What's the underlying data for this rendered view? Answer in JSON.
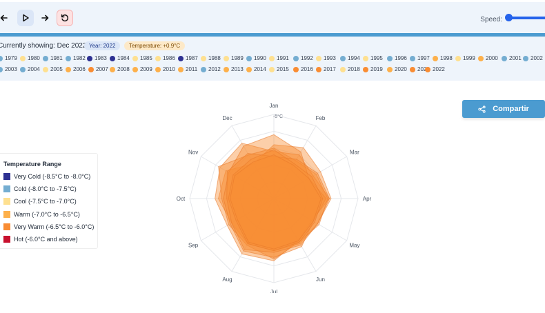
{
  "controls": {
    "prev_icon": "arrow-left-icon",
    "play_icon": "play-icon",
    "next_icon": "arrow-right-icon",
    "reset_icon": "rotate-ccw-icon",
    "speed_label": "Speed:"
  },
  "status": {
    "showing": "Currently showing: Dec 2022",
    "year_badge": "Year: 2022",
    "temp_badge": "Temperature: +0.9°C"
  },
  "share": {
    "label": "Compartir",
    "icon": "share-icon"
  },
  "legend": {
    "title": "Temperature Range",
    "items": [
      {
        "label": "Very Cold (-8.5°C to -8.0°C)",
        "color": "#2e3192"
      },
      {
        "label": "Cold (-8.0°C to -7.5°C)",
        "color": "#74add1"
      },
      {
        "label": "Cool (-7.5°C to -7.0°C)",
        "color": "#fee090"
      },
      {
        "label": "Warm (-7.0°C to -6.5°C)",
        "color": "#fdb04b"
      },
      {
        "label": "Very Warm (-6.5°C to -6.0°C)",
        "color": "#f98c33"
      },
      {
        "label": "Hot (-6.0°C and above)",
        "color": "#c8102e"
      }
    ]
  },
  "years": [
    {
      "year": "1979",
      "color": "#74add1"
    },
    {
      "year": "1980",
      "color": "#fee090"
    },
    {
      "year": "1981",
      "color": "#74add1"
    },
    {
      "year": "1982",
      "color": "#74add1"
    },
    {
      "year": "1983",
      "color": "#2e3192"
    },
    {
      "year": "1984",
      "color": "#2e3192"
    },
    {
      "year": "1985",
      "color": "#fee090"
    },
    {
      "year": "1986",
      "color": "#fee090"
    },
    {
      "year": "1987",
      "color": "#2e3192"
    },
    {
      "year": "1988",
      "color": "#fee090"
    },
    {
      "year": "1989",
      "color": "#fee090"
    },
    {
      "year": "1990",
      "color": "#74add1"
    },
    {
      "year": "1991",
      "color": "#fee090"
    },
    {
      "year": "1992",
      "color": "#74add1"
    },
    {
      "year": "1993",
      "color": "#fee090"
    },
    {
      "year": "1994",
      "color": "#74add1"
    },
    {
      "year": "1995",
      "color": "#fee090"
    },
    {
      "year": "1996",
      "color": "#74add1"
    },
    {
      "year": "1997",
      "color": "#74add1"
    },
    {
      "year": "1998",
      "color": "#fdb04b"
    },
    {
      "year": "1999",
      "color": "#fee090"
    },
    {
      "year": "2000",
      "color": "#fdb04b"
    },
    {
      "year": "2001",
      "color": "#74add1"
    },
    {
      "year": "2002",
      "color": "#74add1"
    },
    {
      "year": "2003",
      "color": "#74add1"
    },
    {
      "year": "2004",
      "color": "#74add1"
    },
    {
      "year": "2005",
      "color": "#fee090"
    },
    {
      "year": "2006",
      "color": "#fdb04b"
    },
    {
      "year": "2007",
      "color": "#f98c33"
    },
    {
      "year": "2008",
      "color": "#fdb04b"
    },
    {
      "year": "2009",
      "color": "#fdb04b"
    },
    {
      "year": "2010",
      "color": "#fdb04b"
    },
    {
      "year": "2011",
      "color": "#fdb04b"
    },
    {
      "year": "2012",
      "color": "#74add1"
    },
    {
      "year": "2013",
      "color": "#fdb04b"
    },
    {
      "year": "2014",
      "color": "#fdb04b"
    },
    {
      "year": "2015",
      "color": "#fee090"
    },
    {
      "year": "2016",
      "color": "#f98c33"
    },
    {
      "year": "2017",
      "color": "#f98c33"
    },
    {
      "year": "2018",
      "color": "#fee090"
    },
    {
      "year": "2019",
      "color": "#f98c33"
    },
    {
      "year": "2020",
      "color": "#fdb04b"
    },
    {
      "year": "2021",
      "color": "#f98c33"
    },
    {
      "year": "2022",
      "color": "#f98c33"
    }
  ],
  "chart_data": {
    "type": "radar",
    "categories": [
      "Jan",
      "Feb",
      "Mar",
      "Apr",
      "May",
      "Jun",
      "Jul",
      "Aug",
      "Sep",
      "Oct",
      "Nov",
      "Dec"
    ],
    "radial_tick_label": "-5°C",
    "rlim": [
      -10,
      -5
    ],
    "fill_color": "#f98c33",
    "series": [
      {
        "values": [
          -6.8,
          -6.5,
          -6.8,
          -6.6,
          -7.0,
          -6.9,
          -6.9,
          -6.9,
          -7.1,
          -6.7,
          -6.7,
          -7.6
        ]
      },
      {
        "values": [
          -7.2,
          -7.0,
          -7.3,
          -6.7,
          -7.4,
          -7.1,
          -6.3,
          -6.2,
          -6.8,
          -6.5,
          -6.3,
          -6.2
        ]
      },
      {
        "values": [
          -7.0,
          -7.4,
          -7.1,
          -6.8,
          -6.9,
          -7.0,
          -6.4,
          -6.8,
          -6.9,
          -6.9,
          -6.2,
          -7.0
        ]
      },
      {
        "values": [
          -6.2,
          -6.8,
          -7.6,
          -6.9,
          -7.3,
          -6.7,
          -6.5,
          -6.4,
          -7.0,
          -7.0,
          -6.9,
          -6.4
        ]
      },
      {
        "values": [
          -7.5,
          -7.3,
          -7.0,
          -6.7,
          -7.0,
          -6.8,
          -6.8,
          -6.5,
          -7.1,
          -7.2,
          -6.8,
          -6.9
        ]
      },
      {
        "values": [
          -7.1,
          -7.6,
          -7.4,
          -7.1,
          -7.2,
          -7.0,
          -6.9,
          -6.9,
          -7.4,
          -7.3,
          -7.2,
          -7.3
        ]
      },
      {
        "values": [
          -7.4,
          -7.7,
          -7.6,
          -7.2,
          -7.3,
          -7.1,
          -7.0,
          -7.0,
          -7.5,
          -7.4,
          -7.3,
          -7.5
        ]
      }
    ]
  }
}
